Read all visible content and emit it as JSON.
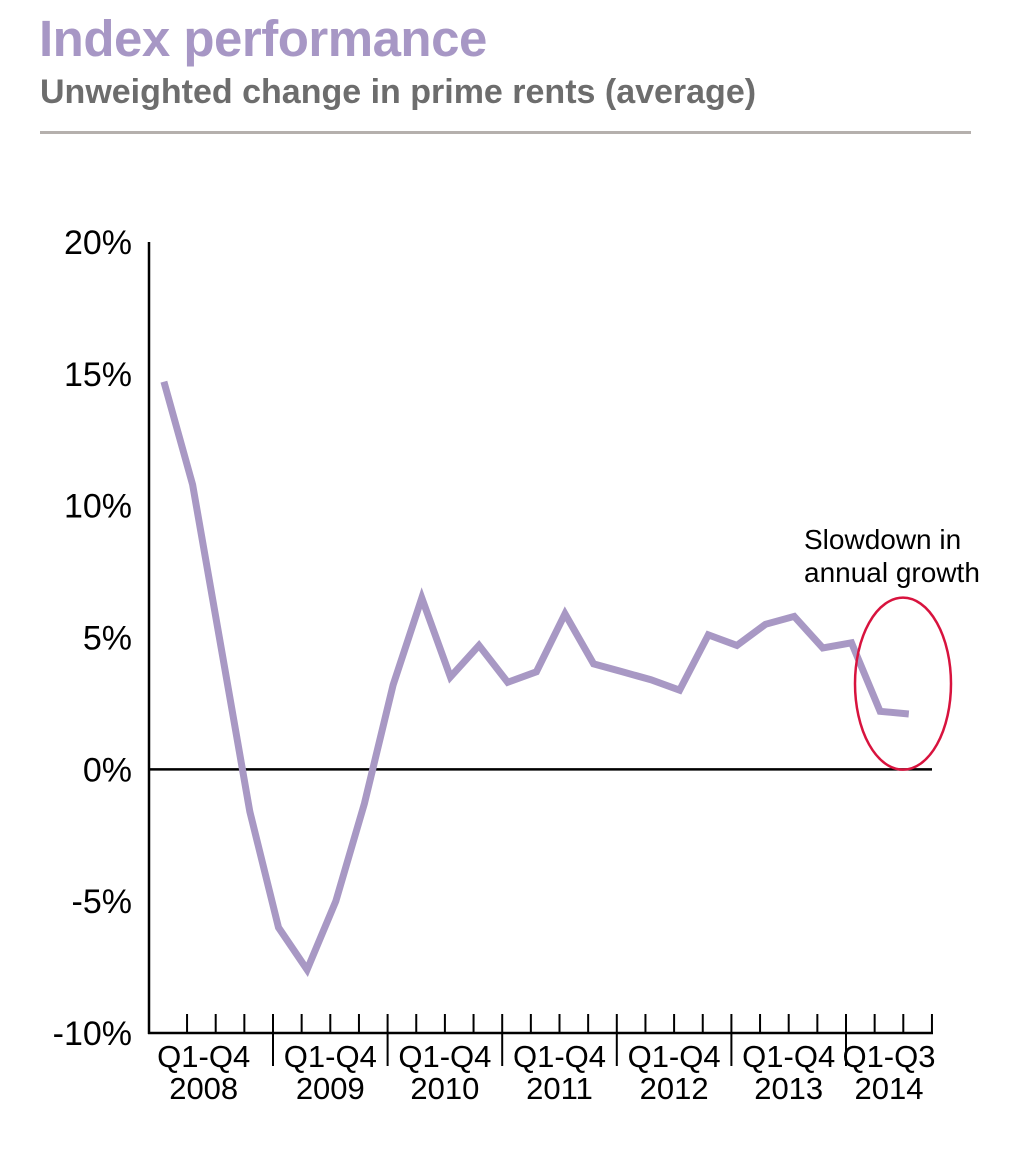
{
  "header": {
    "title": "Index performance",
    "subtitle": "Unweighted change in prime rents (average)"
  },
  "colors": {
    "title": "#a797c5",
    "series": "#a898c4",
    "highlight": "#d8133e",
    "subtitle": "#6d6d6d",
    "divider": "#b5b0ad"
  },
  "chart_data": {
    "type": "line",
    "title": "Index performance",
    "subtitle": "Unweighted change in prime rents (average)",
    "xlabel": "",
    "ylabel": "",
    "ylim": [
      -10,
      20
    ],
    "yticks": [
      -10,
      -5,
      0,
      5,
      10,
      15,
      20
    ],
    "ytick_labels": [
      "-10%",
      "-5%",
      "0%",
      "5%",
      "10%",
      "15%",
      "20%"
    ],
    "grid": false,
    "legend": "none",
    "year_groups": [
      {
        "range": "Q1-Q4",
        "year": "2008",
        "quarters": 4
      },
      {
        "range": "Q1-Q4",
        "year": "2009",
        "quarters": 4
      },
      {
        "range": "Q1-Q4",
        "year": "2010",
        "quarters": 4
      },
      {
        "range": "Q1-Q4",
        "year": "2011",
        "quarters": 4
      },
      {
        "range": "Q1-Q4",
        "year": "2012",
        "quarters": 4
      },
      {
        "range": "Q1-Q4",
        "year": "2013",
        "quarters": 4
      },
      {
        "range": "Q1-Q3",
        "year": "2014",
        "quarters": 3
      }
    ],
    "x": [
      "2008 Q1",
      "2008 Q2",
      "2008 Q3",
      "2008 Q4",
      "2009 Q1",
      "2009 Q2",
      "2009 Q3",
      "2009 Q4",
      "2010 Q1",
      "2010 Q2",
      "2010 Q3",
      "2010 Q4",
      "2011 Q1",
      "2011 Q2",
      "2011 Q3",
      "2011 Q4",
      "2012 Q1",
      "2012 Q2",
      "2012 Q3",
      "2012 Q4",
      "2013 Q1",
      "2013 Q2",
      "2013 Q3",
      "2013 Q4",
      "2014 Q1",
      "2014 Q2",
      "2014 Q3"
    ],
    "series": [
      {
        "name": "Unweighted change in prime rents (average)",
        "values": [
          14.7,
          10.8,
          4.6,
          -1.6,
          -6.0,
          -7.6,
          -5.0,
          -1.3,
          3.2,
          6.5,
          3.5,
          4.7,
          3.3,
          3.7,
          5.9,
          4.0,
          3.7,
          3.4,
          3.0,
          5.1,
          4.7,
          5.5,
          5.8,
          4.6,
          4.8,
          2.2,
          2.1
        ]
      }
    ],
    "annotations": [
      {
        "text_lines": [
          "Slowdown in",
          "annual growth"
        ],
        "highlight": "ellipse",
        "covers": [
          "2014 Q1",
          "2014 Q3"
        ]
      }
    ]
  }
}
